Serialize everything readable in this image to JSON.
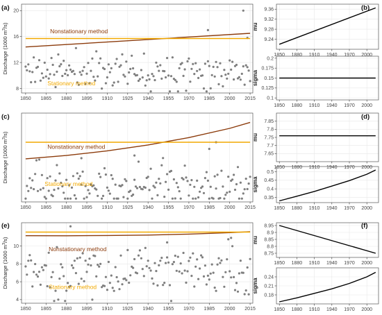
{
  "figure": {
    "colors": {
      "nonstationary": "#8B3A0A",
      "stationary": "#F2A900",
      "points": "#7f7f7f",
      "grid": "#e8e8e8",
      "panel_border": "#555555",
      "param_line": "#000000"
    }
  },
  "chart_data": [
    {
      "id": "a",
      "panel_label": "(a)",
      "type": "scatter",
      "xlabel": "",
      "ylabel": "Discharge (1000 m³/s)",
      "xlim": [
        1847,
        2017
      ],
      "ylim": [
        7.3,
        21
      ],
      "xticks": [
        1850,
        1865,
        1880,
        1895,
        1910,
        1925,
        1940,
        1955,
        1970,
        1985,
        2000,
        2015
      ],
      "yticks": [
        8,
        12,
        16,
        20
      ],
      "grid": true,
      "lines": [
        {
          "name": "Nonstationary method",
          "x": [
            1850,
            2015
          ],
          "y": [
            14.4,
            16.5
          ]
        },
        {
          "name": "Stationary method",
          "x": [
            1850,
            2015
          ],
          "y": [
            15.7,
            15.7
          ]
        }
      ],
      "annotations": [
        "Nonstationary method",
        "Stationary method"
      ],
      "seed": 11,
      "n_points": 166,
      "points_summary": {
        "mean": 10.8,
        "sd": 1.4,
        "outliers": [
          [
            1984,
            17.0
          ],
          [
            2010,
            20.0
          ],
          [
            2013,
            15.8
          ]
        ]
      }
    },
    {
      "id": "b1",
      "panel_label": "(b)",
      "type": "line",
      "ylabel": "mu",
      "xlim": [
        1845,
        2020
      ],
      "ylim": [
        9.2,
        9.38
      ],
      "xticks": [
        1850,
        1880,
        1910,
        1940,
        1970,
        2000
      ],
      "yticks": [
        9.24,
        9.28,
        9.32,
        9.36
      ],
      "series": [
        {
          "x": [
            1850,
            2015
          ],
          "y": [
            9.22,
            9.365
          ]
        }
      ]
    },
    {
      "id": "b2",
      "panel_label": "",
      "type": "line",
      "ylabel": "sigma",
      "xlim": [
        1845,
        2020
      ],
      "ylim": [
        0.095,
        0.205
      ],
      "xticks": [
        1850,
        1880,
        1910,
        1940,
        1970,
        2000
      ],
      "yticks": [
        0.1,
        0.125,
        0.15,
        0.175,
        0.2
      ],
      "series": [
        {
          "x": [
            1850,
            2015
          ],
          "y": [
            0.15,
            0.15
          ]
        }
      ]
    },
    {
      "id": "c",
      "panel_label": "(c)",
      "type": "scatter",
      "xlabel": "",
      "ylabel": "Discharge (1000 m³/s)",
      "xlim": [
        1847,
        2017
      ],
      "ylim": [
        1.8,
        8.5
      ],
      "xticks": [
        1850,
        1865,
        1880,
        1895,
        1910,
        1925,
        1940,
        1955,
        1970,
        1985,
        2000,
        2015
      ],
      "yticks": [],
      "grid": true,
      "lines": [
        {
          "name": "Nonstationary method",
          "x": [
            1850,
            1880,
            1910,
            1940,
            1970,
            2000,
            2015
          ],
          "y": [
            5.05,
            5.3,
            5.65,
            6.1,
            6.65,
            7.35,
            7.8
          ]
        },
        {
          "name": "Stationary method",
          "x": [
            1850,
            2015
          ],
          "y": [
            6.3,
            6.3
          ]
        }
      ],
      "annotations": [
        "Nonstationary method",
        "Stationary method"
      ],
      "seed": 23,
      "n_points": 166,
      "points_summary": {
        "mean": 3.0,
        "sd": 0.9,
        "outliers": [
          [
            1990,
            6.3
          ],
          [
            1985,
            5.8
          ],
          [
            1930,
            5.3
          ],
          [
            1891,
            5.1
          ]
        ]
      }
    },
    {
      "id": "d1",
      "panel_label": "(d)",
      "type": "line",
      "ylabel": "mu",
      "xlim": [
        1845,
        2020
      ],
      "ylim": [
        7.6,
        7.9
      ],
      "xticks": [
        1850,
        1880,
        1910,
        1940,
        1970,
        2000
      ],
      "yticks": [
        7.65,
        7.7,
        7.75,
        7.8,
        7.85
      ],
      "series": [
        {
          "x": [
            1850,
            2015
          ],
          "y": [
            7.76,
            7.76
          ]
        }
      ]
    },
    {
      "id": "d2",
      "panel_label": "",
      "type": "line",
      "ylabel": "sigma",
      "xlim": [
        1845,
        2020
      ],
      "ylim": [
        0.32,
        0.53
      ],
      "xticks": [
        1850,
        1880,
        1910,
        1940,
        1970,
        2000
      ],
      "yticks": [
        0.35,
        0.4,
        0.45,
        0.5
      ],
      "series": [
        {
          "x": [
            1850,
            1880,
            1910,
            1940,
            1970,
            2000,
            2015
          ],
          "y": [
            0.33,
            0.357,
            0.385,
            0.416,
            0.448,
            0.485,
            0.51
          ]
        }
      ]
    },
    {
      "id": "e",
      "panel_label": "(e)",
      "type": "scatter",
      "xlabel": "",
      "ylabel": "Discharge (1000 m³/s)",
      "xlim": [
        1847,
        2017
      ],
      "ylim": [
        3.6,
        12.6
      ],
      "xticks": [
        1850,
        1865,
        1880,
        1895,
        1910,
        1925,
        1940,
        1955,
        1970,
        1985,
        2000,
        2015
      ],
      "yticks": [
        4,
        6,
        8,
        10
      ],
      "grid": true,
      "lines": [
        {
          "name": "Nonstationary method",
          "x": [
            1850,
            1880,
            1910,
            1940,
            1970,
            2000,
            2015
          ],
          "y": [
            11.15,
            11.14,
            11.17,
            11.22,
            11.33,
            11.49,
            11.6
          ]
        },
        {
          "name": "Stationary method",
          "x": [
            1850,
            2015
          ],
          "y": [
            11.55,
            11.55
          ]
        }
      ],
      "annotations": [
        "Nonstationary method",
        "Stationary method"
      ],
      "seed": 37,
      "n_points": 166,
      "points_summary": {
        "mean": 7.0,
        "sd": 1.5,
        "outliers": [
          [
            1883,
            12.2
          ],
          [
            1954,
            10.4
          ],
          [
            2001,
            10.9
          ]
        ]
      }
    },
    {
      "id": "f1",
      "panel_label": "(f)",
      "type": "line",
      "ylabel": "mu",
      "xlim": [
        1845,
        2020
      ],
      "ylim": [
        8.72,
        8.97
      ],
      "xticks": [
        1850,
        1880,
        1910,
        1940,
        1970,
        2000
      ],
      "yticks": [
        8.75,
        8.8,
        8.85,
        8.9,
        8.95
      ],
      "series": [
        {
          "x": [
            1850,
            2015
          ],
          "y": [
            8.95,
            8.75
          ]
        }
      ]
    },
    {
      "id": "f2",
      "panel_label": "",
      "type": "line",
      "ylabel": "sigma",
      "xlim": [
        1845,
        2020
      ],
      "ylim": [
        0.15,
        0.27
      ],
      "xticks": [
        1850,
        1880,
        1910,
        1940,
        1970,
        2000
      ],
      "yticks": [
        0.18,
        0.21,
        0.24
      ],
      "series": [
        {
          "x": [
            1850,
            1880,
            1910,
            1940,
            1970,
            2000,
            2015
          ],
          "y": [
            0.157,
            0.17,
            0.185,
            0.2,
            0.218,
            0.24,
            0.255
          ]
        }
      ]
    }
  ]
}
